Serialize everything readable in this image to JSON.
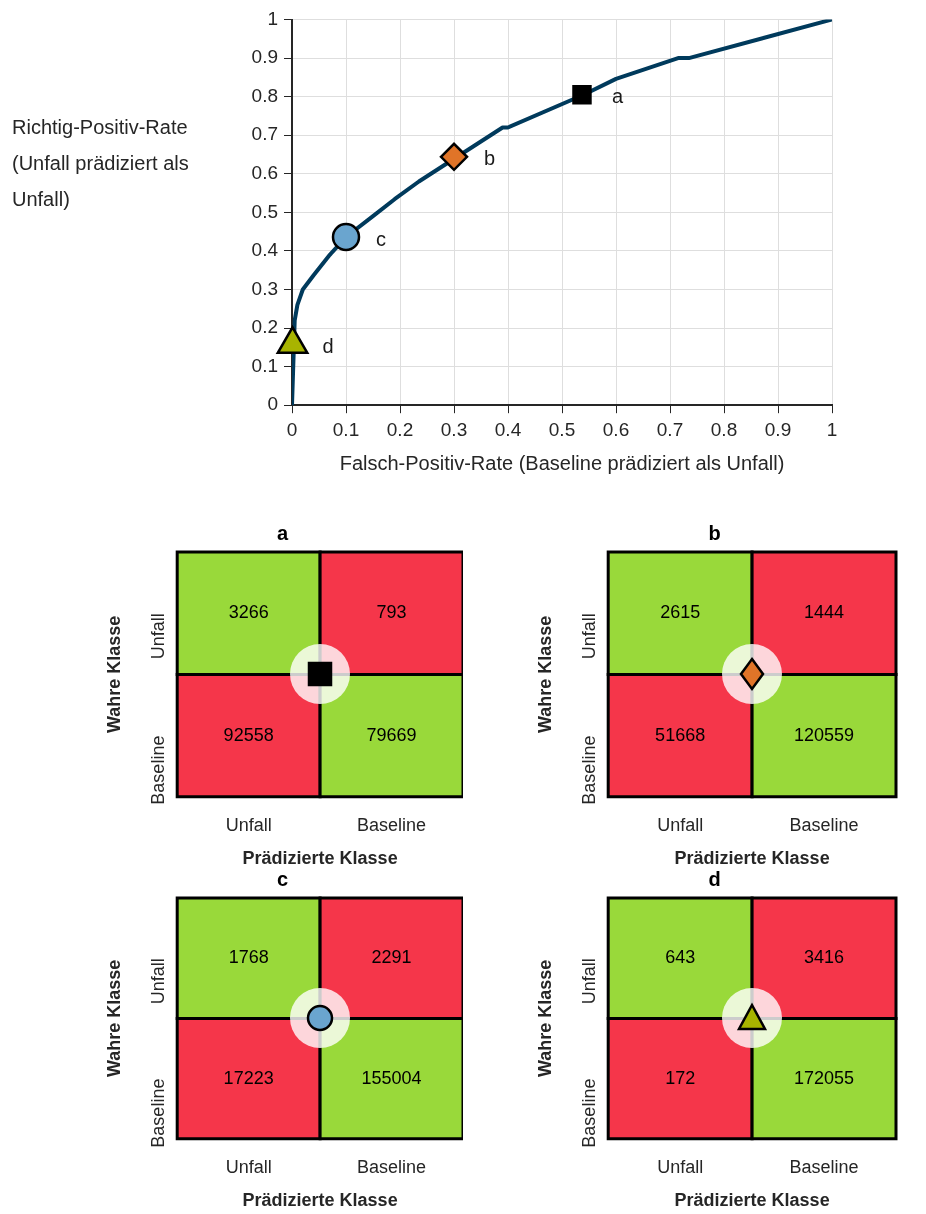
{
  "chart_data": [
    {
      "type": "line",
      "xlabel": "Falsch-Positiv-Rate (Baseline prädiziert als Unfall)",
      "ylabel": "Richtig-Positiv-Rate (Unfall prädiziert als Unfall)",
      "xlim": [
        0,
        1
      ],
      "ylim": [
        0,
        1
      ],
      "xticks": [
        0,
        0.1,
        0.2,
        0.3,
        0.4,
        0.5,
        0.6,
        0.7,
        0.8,
        0.9,
        1
      ],
      "yticks": [
        0,
        0.1,
        0.2,
        0.3,
        0.4,
        0.5,
        0.6,
        0.7,
        0.8,
        0.9,
        1
      ],
      "grid": true,
      "legend": false,
      "series": [
        {
          "type": "line",
          "color": "#003a5c",
          "marker": "none",
          "line_style": "solid",
          "x": [
            0,
            0.005,
            0.01,
            0.02,
            0.04,
            0.07,
            0.1,
            0.15,
            0.19,
            0.235,
            0.39,
            0.4,
            0.54,
            0.6,
            0.715,
            0.735,
            1
          ],
          "values": [
            0,
            0.22,
            0.26,
            0.3,
            0.337,
            0.39,
            0.436,
            0.49,
            0.534,
            0.58,
            0.72,
            0.72,
            0.805,
            0.846,
            0.9,
            0.9,
            1
          ]
        },
        {
          "type": "scatter",
          "name": "a",
          "color": "#000000",
          "marker": "square",
          "x": [
            0.537
          ],
          "values": [
            0.805
          ]
        },
        {
          "type": "scatter",
          "name": "b",
          "color": "#e07428",
          "marker": "diamond",
          "x": [
            0.3
          ],
          "values": [
            0.644
          ]
        },
        {
          "type": "scatter",
          "name": "c",
          "color": "#6aa5cf",
          "marker": "circle",
          "x": [
            0.1
          ],
          "values": [
            0.436
          ]
        },
        {
          "type": "scatter",
          "name": "d",
          "color": "#a8b400",
          "marker": "triangle",
          "x": [
            0.001
          ],
          "values": [
            0.158
          ]
        }
      ]
    },
    {
      "type": "heatmap",
      "title": "a",
      "xlabel": "Prädizierte Klasse",
      "ylabel": "Wahre Klasse",
      "categories": [
        "Unfall",
        "Baseline"
      ],
      "y_categories": [
        "Unfall",
        "Baseline"
      ],
      "data_labels": true,
      "cells": [
        [
          3266,
          793
        ],
        [
          92558,
          79669
        ]
      ],
      "colors": [
        [
          "#99d93a",
          "#f5364a"
        ],
        [
          "#f5364a",
          "#99d93a"
        ]
      ]
    },
    {
      "type": "heatmap",
      "title": "b",
      "xlabel": "Prädizierte Klasse",
      "ylabel": "Wahre Klasse",
      "categories": [
        "Unfall",
        "Baseline"
      ],
      "y_categories": [
        "Unfall",
        "Baseline"
      ],
      "data_labels": true,
      "cells": [
        [
          2615,
          1444
        ],
        [
          51668,
          120559
        ]
      ],
      "colors": [
        [
          "#99d93a",
          "#f5364a"
        ],
        [
          "#f5364a",
          "#99d93a"
        ]
      ]
    },
    {
      "type": "heatmap",
      "title": "c",
      "xlabel": "Prädizierte Klasse",
      "ylabel": "Wahre Klasse",
      "categories": [
        "Unfall",
        "Baseline"
      ],
      "y_categories": [
        "Unfall",
        "Baseline"
      ],
      "data_labels": true,
      "cells": [
        [
          1768,
          2291
        ],
        [
          17223,
          155004
        ]
      ],
      "colors": [
        [
          "#99d93a",
          "#f5364a"
        ],
        [
          "#f5364a",
          "#99d93a"
        ]
      ]
    },
    {
      "type": "heatmap",
      "title": "d",
      "xlabel": "Prädizierte Klasse",
      "ylabel": "Wahre Klasse",
      "categories": [
        "Unfall",
        "Baseline"
      ],
      "y_categories": [
        "Unfall",
        "Baseline"
      ],
      "data_labels": true,
      "cells": [
        [
          643,
          3416
        ],
        [
          172,
          172055
        ]
      ],
      "colors": [
        [
          "#99d93a",
          "#f5364a"
        ],
        [
          "#f5364a",
          "#99d93a"
        ]
      ]
    }
  ]
}
